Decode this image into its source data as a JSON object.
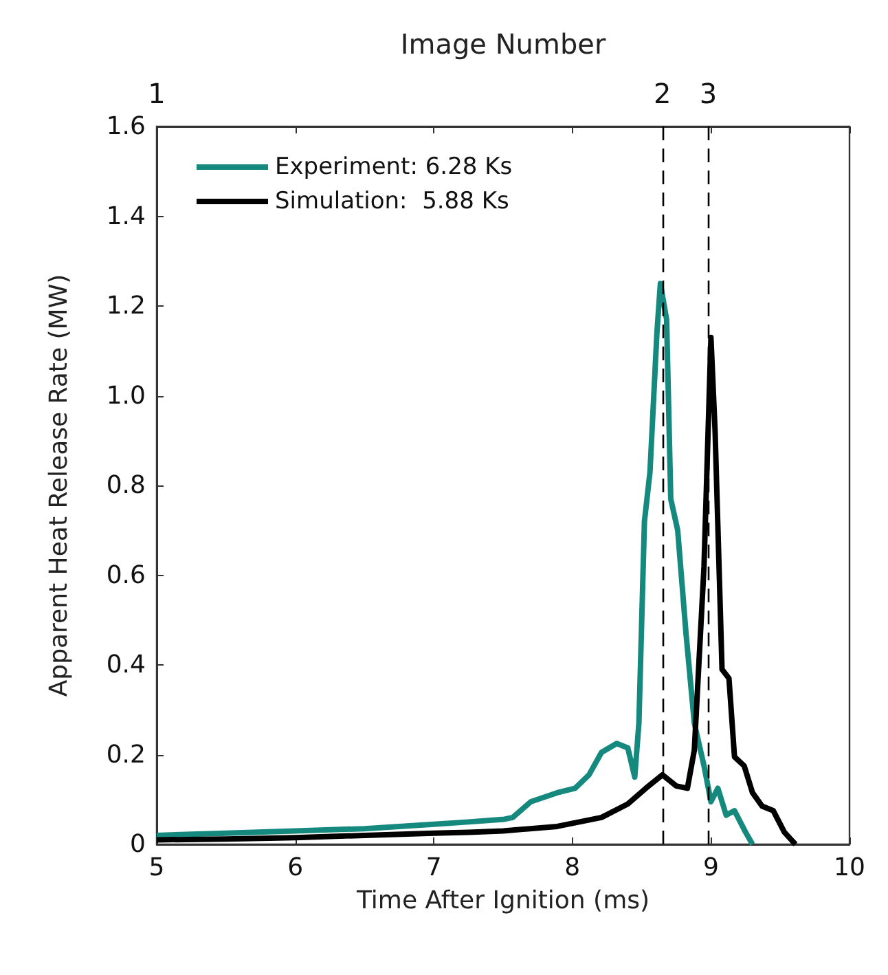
{
  "chart_data": {
    "type": "line",
    "xlabel": "Time After Ignition (ms)",
    "ylabel": "Apparent Heat Release Rate (MW)",
    "x2label": "Image Number",
    "xlim": [
      5,
      10
    ],
    "xticks": [
      5,
      6,
      7,
      8,
      9,
      10
    ],
    "annotations": [
      "1",
      "2",
      "3"
    ],
    "ylim": [
      0,
      1.6
    ],
    "yticks": [
      0,
      {
        "value": 0.2,
        "label": "0.2"
      },
      {
        "value": 0.4,
        "label": "0.4"
      },
      {
        "value": 0.6,
        "label": "0.6"
      },
      {
        "value": 0.8,
        "label": "0.8"
      },
      {
        "value": 1,
        "label": "1.0"
      },
      {
        "value": 1.2,
        "label": "1.2"
      },
      {
        "value": 1.4,
        "label": "1.4"
      },
      {
        "value": 1.6,
        "label": "1.6"
      }
    ],
    "grid": false,
    "legend": "top left",
    "line_style": "solid",
    "ref_lines": [
      {
        "axis": "x",
        "value": 8.65,
        "color": "#000000",
        "line_style": "dashed"
      },
      {
        "axis": "x",
        "value": 8.98,
        "color": "#000000",
        "line_style": "dashed"
      }
    ],
    "series": [
      {
        "name": "Experiment: 6.28 Ks",
        "color": "#16897f",
        "x": [
          5,
          5.5,
          6,
          6.5,
          7,
          7.25,
          7.51,
          7.57,
          7.7,
          7.89,
          8.02,
          8.12,
          8.21,
          8.32,
          8.4,
          8.45,
          8.48,
          8.52,
          8.56,
          8.61,
          8.635,
          8.68,
          8.71,
          8.76,
          8.82,
          8.88,
          8.95,
          9,
          9.05,
          9.11,
          9.17,
          9.25,
          9.3
        ],
        "values": [
          0.02,
          0.025,
          0.03,
          0.035,
          0.045,
          0.05,
          0.056,
          0.06,
          0.095,
          0.115,
          0.125,
          0.155,
          0.205,
          0.225,
          0.215,
          0.15,
          0.27,
          0.72,
          0.83,
          1.14,
          1.25,
          1.17,
          0.77,
          0.7,
          0.47,
          0.27,
          0.175,
          0.095,
          0.125,
          0.065,
          0.075,
          0.027,
          0
        ]
      },
      {
        "name": "Simulation:  5.88 Ks",
        "color": "#000000",
        "x": [
          5,
          5.5,
          6,
          6.5,
          7,
          7.25,
          7.5,
          7.89,
          8.21,
          8.4,
          8.53,
          8.65,
          8.75,
          8.83,
          8.88,
          8.95,
          9,
          9.03,
          9.08,
          9.13,
          9.17,
          9.24,
          9.3,
          9.37,
          9.45,
          9.53,
          9.61
        ],
        "values": [
          0.01,
          0.012,
          0.015,
          0.02,
          0.025,
          0.027,
          0.03,
          0.04,
          0.06,
          0.09,
          0.125,
          0.155,
          0.13,
          0.125,
          0.21,
          0.62,
          1.13,
          0.92,
          0.39,
          0.37,
          0.195,
          0.175,
          0.115,
          0.085,
          0.075,
          0.027,
          0
        ]
      }
    ]
  }
}
